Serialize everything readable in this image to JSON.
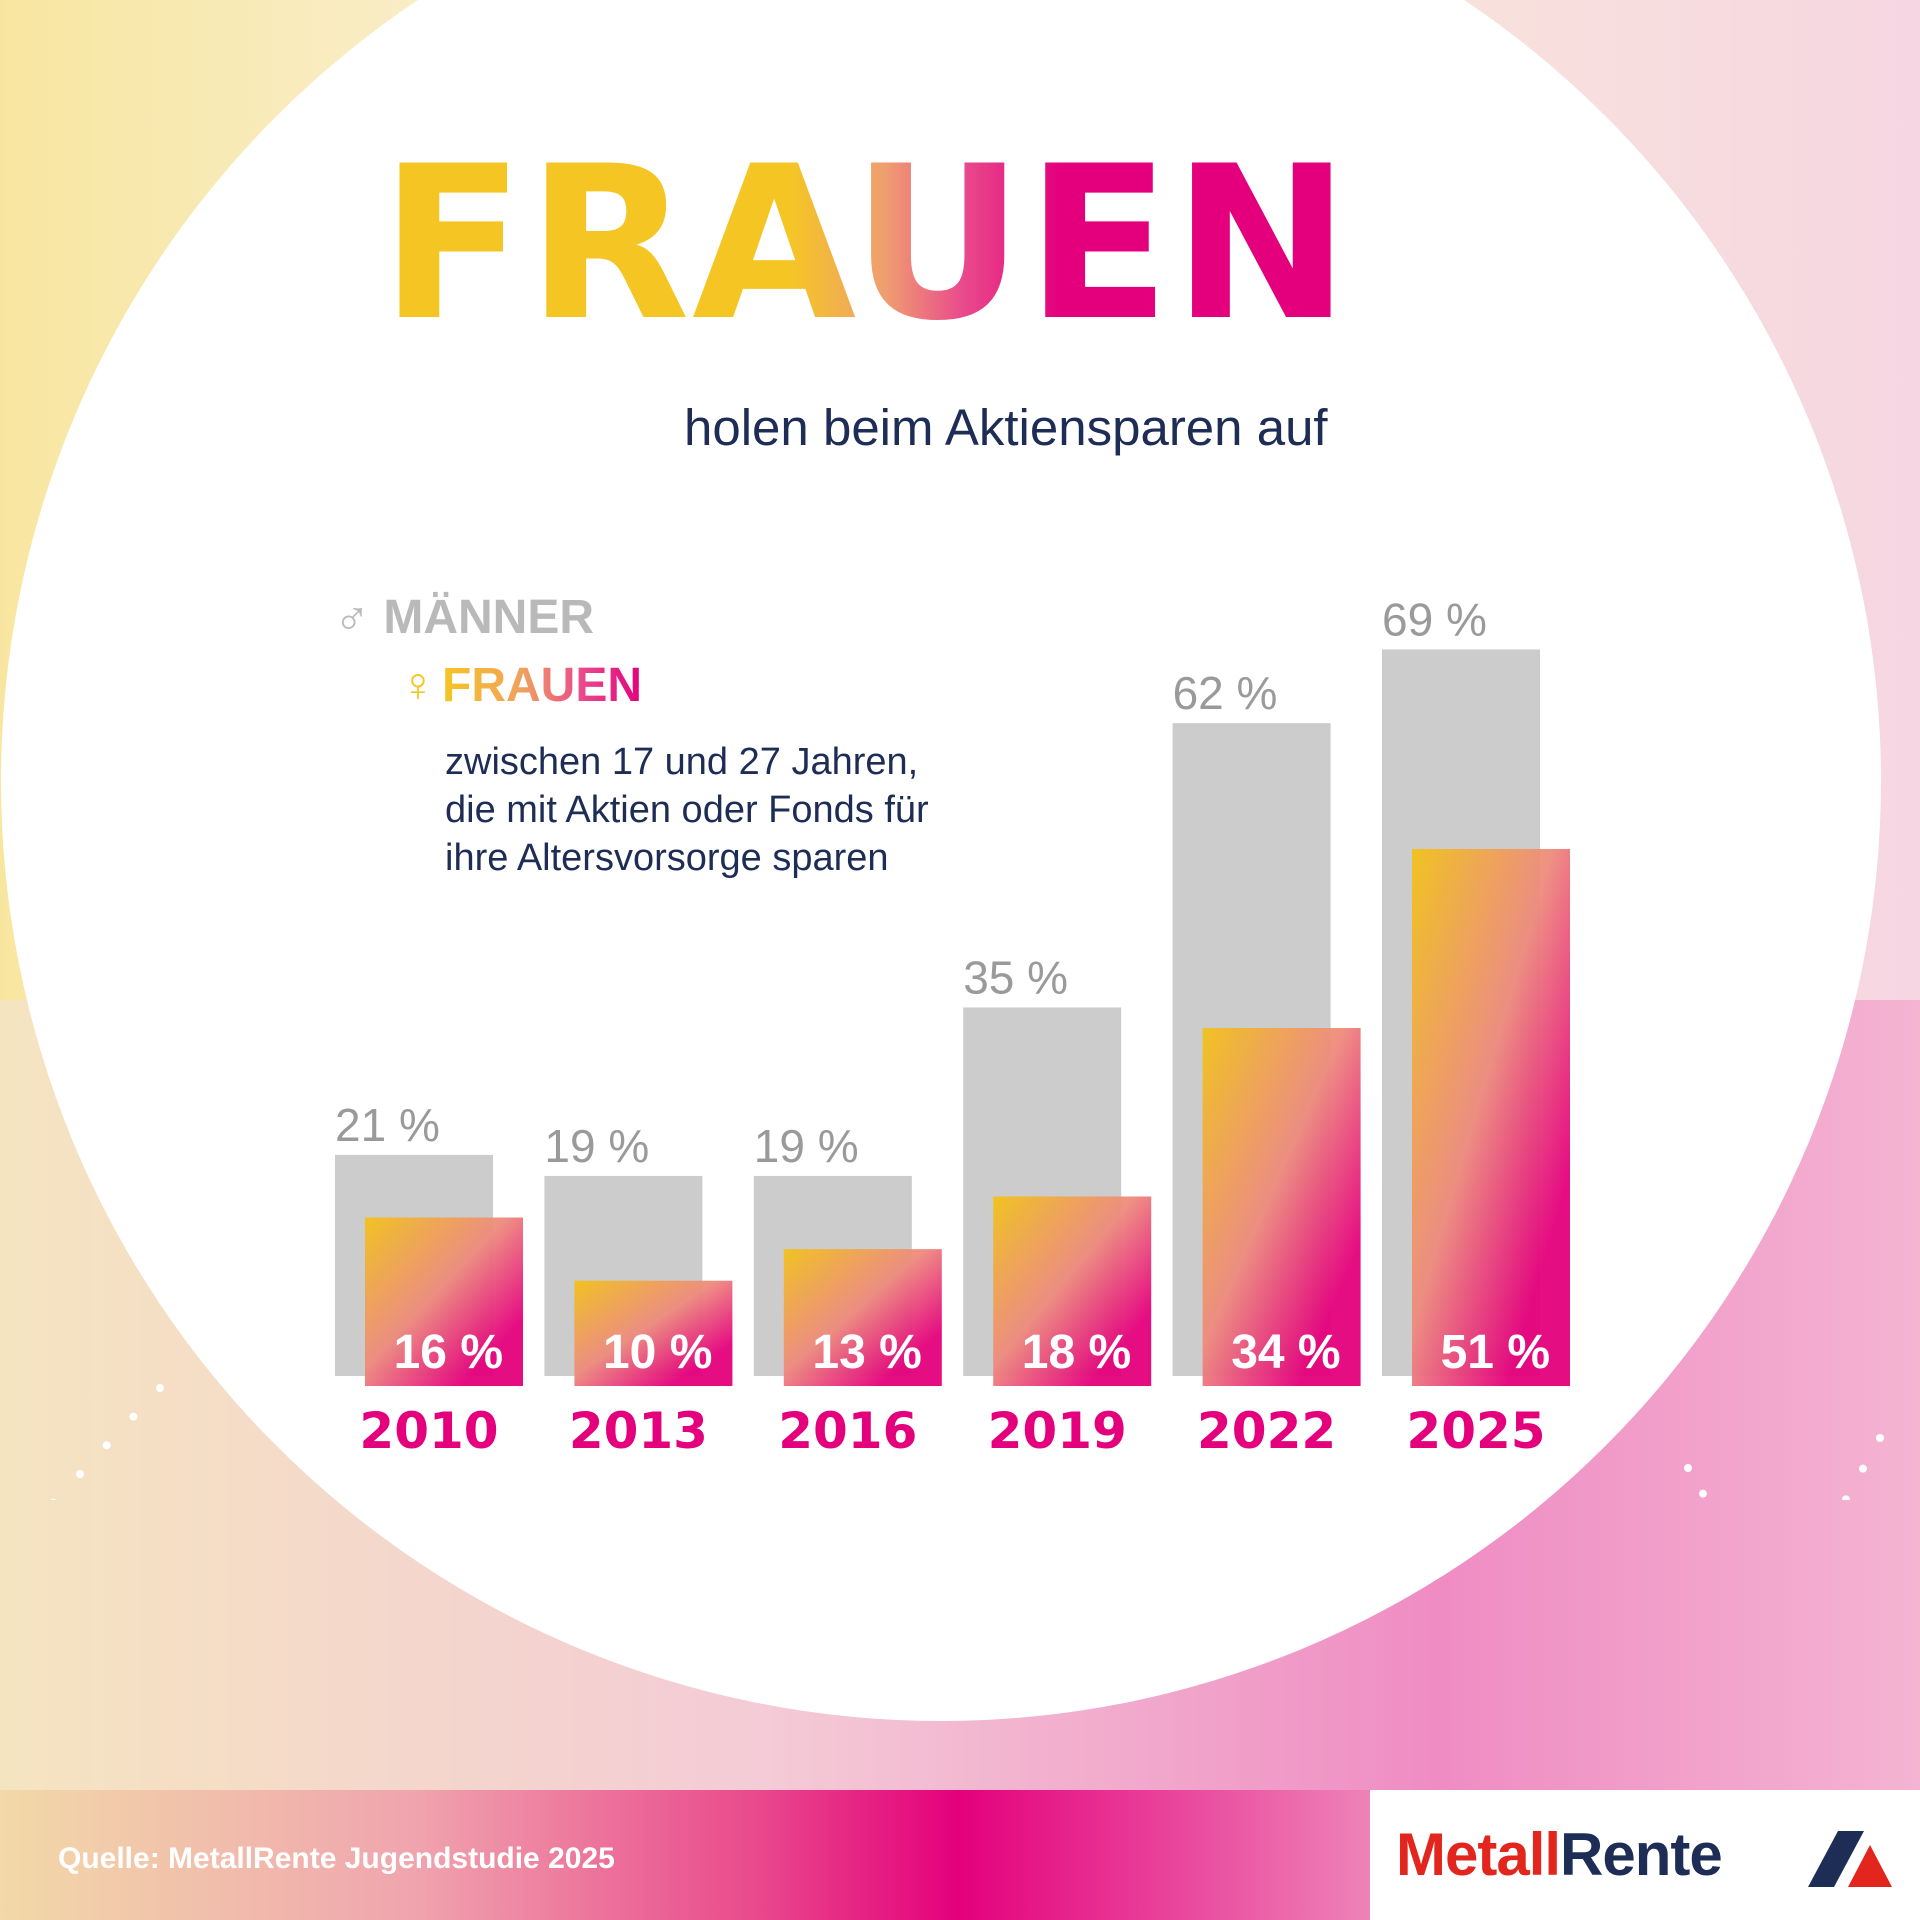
{
  "title": "FRAUEN",
  "subtitle": "holen beim Aktiensparen auf",
  "legend": {
    "male_symbol": "♂",
    "male_label": "MÄNNER",
    "female_symbol": "♀",
    "female_label": "FRAUEN"
  },
  "description": [
    "zwischen 17 und 27 Jahren,",
    "die mit Aktien oder Fonds für",
    "ihre Altersvorsorge sparen"
  ],
  "colors": {
    "yellow": "#f5c623",
    "magenta": "#e4007c",
    "grey_bar": "#cccccc",
    "grey_text": "#9a9a9a",
    "navy": "#1e2d55",
    "logo_red": "#e3261d"
  },
  "chart_data": {
    "type": "bar",
    "categories": [
      "2010",
      "2013",
      "2016",
      "2019",
      "2022",
      "2025"
    ],
    "series": [
      {
        "name": "MÄNNER",
        "values": [
          21,
          19,
          19,
          35,
          62,
          69
        ]
      },
      {
        "name": "FRAUEN",
        "values": [
          16,
          10,
          13,
          18,
          34,
          51
        ]
      }
    ],
    "value_suffix": " %",
    "ylim": [
      0,
      69
    ],
    "legend": "top-left",
    "grid": false
  },
  "footer": {
    "source": "Quelle: MetallRente Jugendstudie 2025",
    "logo_part1": "Metall",
    "logo_part2": "Rente"
  }
}
